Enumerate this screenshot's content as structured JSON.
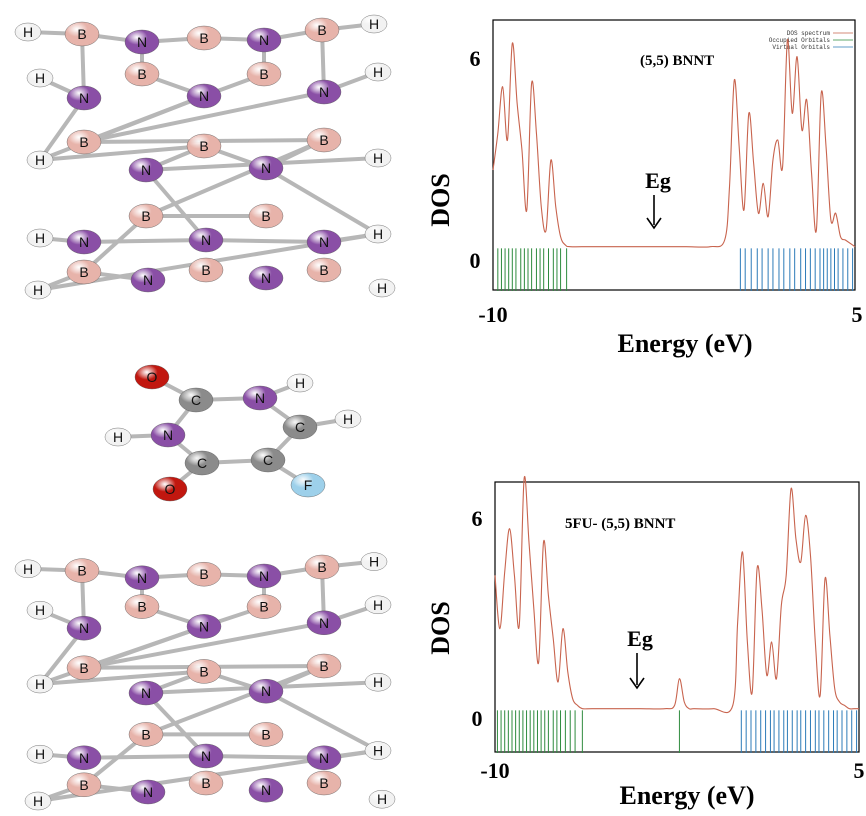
{
  "colors": {
    "N": "#8a4fa6",
    "B": "#e7b3aa",
    "H": "#f2f2f2",
    "C": "#8b8b8b",
    "O": "#c1170f",
    "F": "#9dd0ea",
    "bond": "#b7b7b7",
    "dos": "#c8644e",
    "occupied": "#2e8b3e",
    "virtual": "#2c7bb8"
  },
  "molecule_top": {
    "name": "(5,5) BNNT"
  },
  "molecule_mid": {
    "name": "5FU"
  },
  "chart_data": [
    {
      "type": "line",
      "title": "(5,5) BNNT",
      "xlabel": "Energy (eV)",
      "ylabel": "DOS",
      "xlim": [
        -10,
        5
      ],
      "ylim": [
        -1.3,
        6.8
      ],
      "x_ticks": [
        "-10",
        "5"
      ],
      "y_ticks": [
        "6",
        "0"
      ],
      "legend": {
        "placement": "top-right",
        "entries": [
          "DOS spectrum",
          "Occupied Orbitals",
          "Virtual Orbitals"
        ]
      },
      "annotation": "Eg",
      "series": [
        {
          "name": "DOS spectrum",
          "x": [
            -10,
            -9.8,
            -9.6,
            -9.4,
            -9.2,
            -9.0,
            -8.8,
            -8.6,
            -8.4,
            -8.2,
            -8.0,
            -7.8,
            -7.6,
            -7.4,
            -7.2,
            -7.0,
            -6.8,
            -6.0,
            -5.0,
            -4.0,
            -3.0,
            -2.0,
            -1.0,
            -0.4,
            -0.2,
            0.0,
            0.2,
            0.4,
            0.6,
            0.8,
            1.0,
            1.2,
            1.4,
            1.6,
            1.8,
            2.0,
            2.2,
            2.4,
            2.6,
            2.8,
            3.0,
            3.2,
            3.4,
            3.6,
            3.8,
            4.0,
            4.2,
            4.4,
            4.6,
            4.8,
            5.0
          ],
          "y": [
            2.3,
            3.4,
            4.8,
            3.2,
            6.1,
            4.3,
            2.9,
            1.1,
            4.9,
            3.4,
            1.2,
            0.5,
            2.6,
            1.2,
            0.3,
            0.05,
            0,
            0,
            0,
            0,
            0,
            0,
            0,
            0.2,
            1.8,
            5.0,
            3.0,
            1.1,
            4.0,
            2.5,
            1.0,
            1.9,
            0.9,
            2.6,
            3.2,
            2.4,
            6.2,
            4.0,
            5.7,
            3.5,
            4.4,
            2.2,
            0.5,
            4.6,
            3.0,
            0.8,
            1.0,
            0.3,
            0.2,
            0.1,
            0
          ]
        }
      ],
      "occupied_levels": [
        -9.8,
        -9.65,
        -9.5,
        -9.35,
        -9.2,
        -9.05,
        -8.85,
        -8.7,
        -8.55,
        -8.4,
        -8.2,
        -8.05,
        -7.9,
        -7.7,
        -7.5,
        -7.35,
        -7.2,
        -6.95
      ],
      "virtual_levels": [
        0.25,
        0.45,
        0.7,
        0.95,
        1.15,
        1.4,
        1.6,
        1.85,
        2.05,
        2.3,
        2.5,
        2.75,
        2.95,
        3.15,
        3.35,
        3.55,
        3.7,
        3.85,
        4.0,
        4.15,
        4.3,
        4.5,
        4.7,
        4.9
      ]
    },
    {
      "type": "line",
      "title": "5FU- (5,5) BNNT",
      "xlabel": "Energy (eV)",
      "ylabel": "DOS",
      "xlim": [
        -10,
        5
      ],
      "ylim": [
        -1.3,
        6.8
      ],
      "x_ticks": [
        "-10",
        "5"
      ],
      "y_ticks": [
        "6",
        "0"
      ],
      "annotation": "Eg",
      "series": [
        {
          "name": "DOS spectrum",
          "x": [
            -10,
            -9.8,
            -9.6,
            -9.4,
            -9.2,
            -9.0,
            -8.8,
            -8.6,
            -8.4,
            -8.2,
            -8.0,
            -7.8,
            -7.6,
            -7.4,
            -7.2,
            -7.0,
            -6.8,
            -6.6,
            -6.4,
            -6.0,
            -5.0,
            -4.0,
            -3.0,
            -2.6,
            -2.4,
            -2.2,
            -2.0,
            -1.8,
            -1.0,
            -0.2,
            0.0,
            0.2,
            0.4,
            0.6,
            0.8,
            1.0,
            1.2,
            1.4,
            1.6,
            1.8,
            2.0,
            2.2,
            2.4,
            2.6,
            2.8,
            3.0,
            3.2,
            3.4,
            3.6,
            3.8,
            4.0,
            4.2,
            4.4,
            4.6,
            4.8,
            5.0
          ],
          "y": [
            4.0,
            2.4,
            4.1,
            5.4,
            4.0,
            2.5,
            6.9,
            5.0,
            3.0,
            1.4,
            5.0,
            3.4,
            2.1,
            0.8,
            2.4,
            1.1,
            0.3,
            0.1,
            0,
            0,
            0,
            0,
            0,
            0.1,
            0.9,
            0.2,
            0,
            0,
            0,
            0.1,
            2.6,
            4.7,
            2.0,
            0.5,
            4.2,
            3.0,
            1.0,
            2.0,
            0.9,
            3.1,
            4.0,
            6.6,
            5.1,
            4.4,
            5.8,
            4.6,
            2.0,
            0.4,
            3.9,
            2.2,
            0.6,
            0.2,
            0.1,
            0,
            0,
            0
          ]
        }
      ],
      "occupied_levels": [
        -9.9,
        -9.75,
        -9.6,
        -9.45,
        -9.3,
        -9.15,
        -9.0,
        -8.85,
        -8.7,
        -8.55,
        -8.4,
        -8.25,
        -8.1,
        -7.95,
        -7.8,
        -7.6,
        -7.45,
        -7.3,
        -7.1,
        -6.9,
        -6.7,
        -6.4,
        -2.4
      ],
      "virtual_levels": [
        0.15,
        0.35,
        0.55,
        0.75,
        0.95,
        1.15,
        1.35,
        1.5,
        1.7,
        1.9,
        2.05,
        2.25,
        2.45,
        2.6,
        2.8,
        3.0,
        3.2,
        3.35,
        3.55,
        3.75,
        3.95,
        4.1,
        4.3,
        4.5,
        4.7,
        4.9
      ]
    }
  ]
}
